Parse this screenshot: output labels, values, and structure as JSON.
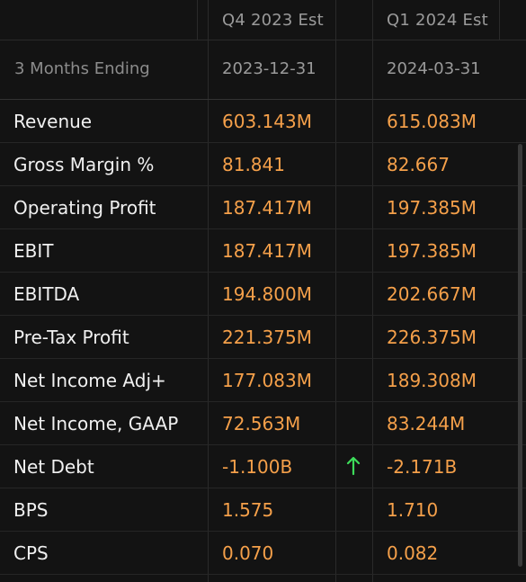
{
  "header": {
    "col1": "Q4 2023 Est",
    "col2": "Q1 2024 Est"
  },
  "subheader": {
    "label": "3 Months Ending",
    "col1": "2023-12-31",
    "col2": "2024-03-31"
  },
  "rows": [
    {
      "label": "Revenue",
      "c1": "603.143M",
      "c2": "615.083M"
    },
    {
      "label": "Gross Margin %",
      "c1": "81.841",
      "c2": "82.667"
    },
    {
      "label": "Operating Profit",
      "c1": "187.417M",
      "c2": "197.385M"
    },
    {
      "label": "EBIT",
      "c1": "187.417M",
      "c2": "197.385M"
    },
    {
      "label": "EBITDA",
      "c1": "194.800M",
      "c2": "202.667M"
    },
    {
      "label": "Pre-Tax Profit",
      "c1": "221.375M",
      "c2": "226.375M"
    },
    {
      "label": "Net Income Adj+",
      "c1": "177.083M",
      "c2": "189.308M"
    },
    {
      "label": "Net Income, GAAP",
      "c1": "72.563M",
      "c2": "83.244M"
    },
    {
      "label": "Net Debt",
      "c1": "-1.100B",
      "c2": "-2.171B",
      "indicator": "arrow-up"
    },
    {
      "label": "BPS",
      "c1": "1.575",
      "c2": "1.710"
    },
    {
      "label": "CPS",
      "c1": "0.070",
      "c2": "0.082"
    }
  ],
  "colors": {
    "value": "#f5a04a",
    "arrow_up": "#3ddc5a",
    "label": "#f0f0f0",
    "muted": "#9a9a9a"
  }
}
